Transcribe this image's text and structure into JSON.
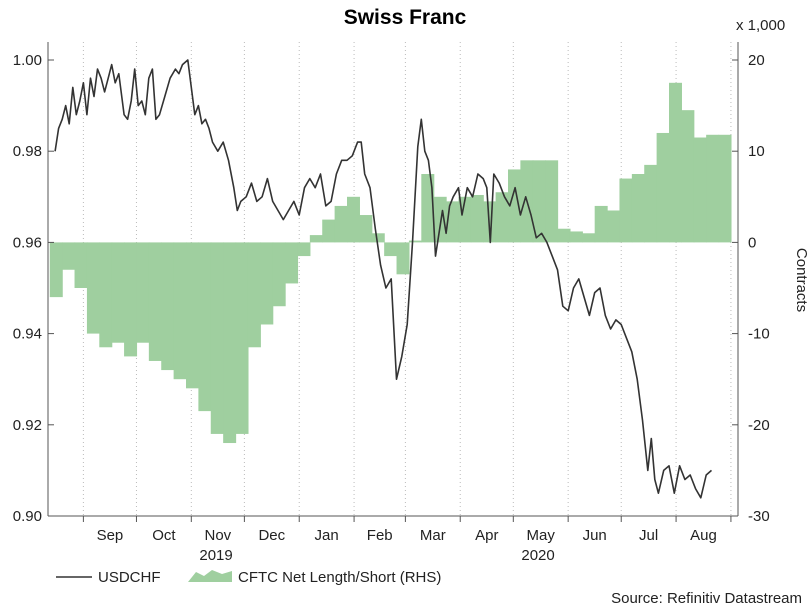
{
  "chart_data": {
    "type": "line",
    "title": "Swiss Franc",
    "source": "Source: Refinitiv Datastream",
    "x_ticks": [
      "Sep",
      "Oct",
      "Nov",
      "Dec",
      "Jan",
      "Feb",
      "Mar",
      "Apr",
      "May",
      "Jun",
      "Jul",
      "Aug"
    ],
    "year_labels": [
      {
        "label": "2019",
        "at": "2019-11-15"
      },
      {
        "label": "2020",
        "at": "2020-05-15"
      }
    ],
    "y_left": {
      "lim": [
        0.9,
        1.0
      ],
      "ticks": [
        "0.90",
        "0.92",
        "0.94",
        "0.96",
        "0.98",
        "1.00"
      ]
    },
    "y_right": {
      "lim": [
        -30,
        20
      ],
      "ticks": [
        "-30",
        "-20",
        "-10",
        "0",
        "10",
        "20"
      ],
      "label": "Contracts",
      "multiplier": "x 1,000"
    },
    "grid": {
      "vertical": true,
      "style": "dotted"
    },
    "legend_position": "bottom-left",
    "colors": {
      "line": "#333333",
      "area": "#9fcf9f",
      "axis": "#555555"
    },
    "series": [
      {
        "name": "USDCHF",
        "type": "line",
        "axis": "left",
        "points": [
          [
            "2019-08-16",
            0.98
          ],
          [
            "2019-08-18",
            0.985
          ],
          [
            "2019-08-20",
            0.987
          ],
          [
            "2019-08-22",
            0.99
          ],
          [
            "2019-08-24",
            0.986
          ],
          [
            "2019-08-26",
            0.994
          ],
          [
            "2019-08-28",
            0.988
          ],
          [
            "2019-08-30",
            0.991
          ],
          [
            "2019-09-01",
            0.995
          ],
          [
            "2019-09-03",
            0.988
          ],
          [
            "2019-09-05",
            0.996
          ],
          [
            "2019-09-07",
            0.992
          ],
          [
            "2019-09-09",
            0.998
          ],
          [
            "2019-09-11",
            0.996
          ],
          [
            "2019-09-13",
            0.993
          ],
          [
            "2019-09-15",
            0.996
          ],
          [
            "2019-09-17",
            0.999
          ],
          [
            "2019-09-19",
            0.995
          ],
          [
            "2019-09-21",
            0.997
          ],
          [
            "2019-09-24",
            0.988
          ],
          [
            "2019-09-26",
            0.987
          ],
          [
            "2019-09-28",
            0.991
          ],
          [
            "2019-09-30",
            0.998
          ],
          [
            "2019-10-02",
            0.99
          ],
          [
            "2019-10-04",
            0.991
          ],
          [
            "2019-10-06",
            0.988
          ],
          [
            "2019-10-08",
            0.996
          ],
          [
            "2019-10-10",
            0.998
          ],
          [
            "2019-10-12",
            0.987
          ],
          [
            "2019-10-14",
            0.988
          ],
          [
            "2019-10-17",
            0.992
          ],
          [
            "2019-10-20",
            0.996
          ],
          [
            "2019-10-23",
            0.998
          ],
          [
            "2019-10-25",
            0.997
          ],
          [
            "2019-10-27",
            0.999
          ],
          [
            "2019-10-30",
            1.0
          ],
          [
            "2019-11-01",
            0.994
          ],
          [
            "2019-11-03",
            0.988
          ],
          [
            "2019-11-05",
            0.99
          ],
          [
            "2019-11-07",
            0.986
          ],
          [
            "2019-11-09",
            0.987
          ],
          [
            "2019-11-11",
            0.985
          ],
          [
            "2019-11-13",
            0.982
          ],
          [
            "2019-11-16",
            0.98
          ],
          [
            "2019-11-19",
            0.982
          ],
          [
            "2019-11-22",
            0.978
          ],
          [
            "2019-11-25",
            0.972
          ],
          [
            "2019-11-27",
            0.967
          ],
          [
            "2019-11-29",
            0.969
          ],
          [
            "2019-12-02",
            0.97
          ],
          [
            "2019-12-05",
            0.973
          ],
          [
            "2019-12-08",
            0.969
          ],
          [
            "2019-12-11",
            0.97
          ],
          [
            "2019-12-14",
            0.974
          ],
          [
            "2019-12-17",
            0.969
          ],
          [
            "2019-12-20",
            0.967
          ],
          [
            "2019-12-23",
            0.965
          ],
          [
            "2019-12-26",
            0.967
          ],
          [
            "2019-12-29",
            0.969
          ],
          [
            "2020-01-01",
            0.966
          ],
          [
            "2020-01-04",
            0.972
          ],
          [
            "2020-01-07",
            0.974
          ],
          [
            "2020-01-10",
            0.972
          ],
          [
            "2020-01-13",
            0.975
          ],
          [
            "2020-01-16",
            0.968
          ],
          [
            "2020-01-19",
            0.969
          ],
          [
            "2020-01-22",
            0.975
          ],
          [
            "2020-01-25",
            0.978
          ],
          [
            "2020-01-28",
            0.978
          ],
          [
            "2020-01-31",
            0.979
          ],
          [
            "2020-02-03",
            0.982
          ],
          [
            "2020-02-05",
            0.982
          ],
          [
            "2020-02-07",
            0.975
          ],
          [
            "2020-02-10",
            0.972
          ],
          [
            "2020-02-13",
            0.963
          ],
          [
            "2020-02-16",
            0.955
          ],
          [
            "2020-02-19",
            0.95
          ],
          [
            "2020-02-22",
            0.952
          ],
          [
            "2020-02-25",
            0.93
          ],
          [
            "2020-02-28",
            0.935
          ],
          [
            "2020-03-02",
            0.942
          ],
          [
            "2020-03-05",
            0.96
          ],
          [
            "2020-03-08",
            0.981
          ],
          [
            "2020-03-10",
            0.987
          ],
          [
            "2020-03-12",
            0.98
          ],
          [
            "2020-03-14",
            0.978
          ],
          [
            "2020-03-16",
            0.972
          ],
          [
            "2020-03-18",
            0.957
          ],
          [
            "2020-03-20",
            0.962
          ],
          [
            "2020-03-22",
            0.967
          ],
          [
            "2020-03-24",
            0.962
          ],
          [
            "2020-03-26",
            0.968
          ],
          [
            "2020-03-28",
            0.97
          ],
          [
            "2020-03-31",
            0.972
          ],
          [
            "2020-04-02",
            0.966
          ],
          [
            "2020-04-05",
            0.972
          ],
          [
            "2020-04-08",
            0.97
          ],
          [
            "2020-04-11",
            0.975
          ],
          [
            "2020-04-14",
            0.974
          ],
          [
            "2020-04-16",
            0.972
          ],
          [
            "2020-04-18",
            0.96
          ],
          [
            "2020-04-20",
            0.975
          ],
          [
            "2020-04-23",
            0.973
          ],
          [
            "2020-04-26",
            0.97
          ],
          [
            "2020-04-29",
            0.968
          ],
          [
            "2020-05-02",
            0.972
          ],
          [
            "2020-05-05",
            0.966
          ],
          [
            "2020-05-08",
            0.97
          ],
          [
            "2020-05-11",
            0.966
          ],
          [
            "2020-05-14",
            0.961
          ],
          [
            "2020-05-17",
            0.962
          ],
          [
            "2020-05-20",
            0.96
          ],
          [
            "2020-05-23",
            0.957
          ],
          [
            "2020-05-26",
            0.954
          ],
          [
            "2020-05-29",
            0.946
          ],
          [
            "2020-06-01",
            0.945
          ],
          [
            "2020-06-04",
            0.95
          ],
          [
            "2020-06-07",
            0.952
          ],
          [
            "2020-06-10",
            0.948
          ],
          [
            "2020-06-13",
            0.944
          ],
          [
            "2020-06-16",
            0.949
          ],
          [
            "2020-06-19",
            0.95
          ],
          [
            "2020-06-22",
            0.944
          ],
          [
            "2020-06-25",
            0.941
          ],
          [
            "2020-06-28",
            0.943
          ],
          [
            "2020-07-01",
            0.942
          ],
          [
            "2020-07-04",
            0.939
          ],
          [
            "2020-07-07",
            0.936
          ],
          [
            "2020-07-10",
            0.93
          ],
          [
            "2020-07-13",
            0.921
          ],
          [
            "2020-07-16",
            0.91
          ],
          [
            "2020-07-18",
            0.917
          ],
          [
            "2020-07-20",
            0.908
          ],
          [
            "2020-07-22",
            0.905
          ],
          [
            "2020-07-25",
            0.91
          ],
          [
            "2020-07-28",
            0.911
          ],
          [
            "2020-07-31",
            0.905
          ],
          [
            "2020-08-03",
            0.911
          ],
          [
            "2020-08-06",
            0.908
          ],
          [
            "2020-08-09",
            0.909
          ],
          [
            "2020-08-12",
            0.906
          ],
          [
            "2020-08-15",
            0.904
          ],
          [
            "2020-08-18",
            0.909
          ],
          [
            "2020-08-21",
            0.91
          ]
        ]
      },
      {
        "name": "CFTC Net Length/Short (RHS)",
        "type": "area",
        "axis": "right",
        "steps": [
          [
            "2019-08-13",
            -6.0
          ],
          [
            "2019-08-20",
            -3.0
          ],
          [
            "2019-08-27",
            -5.0
          ],
          [
            "2019-09-03",
            -10.0
          ],
          [
            "2019-09-10",
            -11.5
          ],
          [
            "2019-09-17",
            -11.0
          ],
          [
            "2019-09-24",
            -12.5
          ],
          [
            "2019-10-01",
            -11.0
          ],
          [
            "2019-10-08",
            -13.0
          ],
          [
            "2019-10-15",
            -14.0
          ],
          [
            "2019-10-22",
            -15.0
          ],
          [
            "2019-10-29",
            -16.0
          ],
          [
            "2019-11-05",
            -18.5
          ],
          [
            "2019-11-12",
            -21.0
          ],
          [
            "2019-11-19",
            -22.0
          ],
          [
            "2019-11-26",
            -21.0
          ],
          [
            "2019-12-03",
            -11.5
          ],
          [
            "2019-12-10",
            -9.0
          ],
          [
            "2019-12-17",
            -7.0
          ],
          [
            "2019-12-24",
            -4.5
          ],
          [
            "2019-12-31",
            -1.5
          ],
          [
            "2020-01-07",
            0.8
          ],
          [
            "2020-01-14",
            2.5
          ],
          [
            "2020-01-21",
            4.0
          ],
          [
            "2020-01-28",
            5.0
          ],
          [
            "2020-02-04",
            3.0
          ],
          [
            "2020-02-11",
            1.0
          ],
          [
            "2020-02-18",
            -1.5
          ],
          [
            "2020-02-25",
            -3.5
          ],
          [
            "2020-03-03",
            0.2
          ],
          [
            "2020-03-10",
            7.5
          ],
          [
            "2020-03-17",
            5.0
          ],
          [
            "2020-03-24",
            4.5
          ],
          [
            "2020-03-31",
            5.0
          ],
          [
            "2020-04-07",
            5.2
          ],
          [
            "2020-04-14",
            4.5
          ],
          [
            "2020-04-21",
            5.5
          ],
          [
            "2020-04-28",
            8.0
          ],
          [
            "2020-05-05",
            9.0
          ],
          [
            "2020-05-12",
            9.0
          ],
          [
            "2020-05-19",
            9.0
          ],
          [
            "2020-05-26",
            1.5
          ],
          [
            "2020-06-02",
            1.2
          ],
          [
            "2020-06-09",
            1.0
          ],
          [
            "2020-06-16",
            4.0
          ],
          [
            "2020-06-23",
            3.5
          ],
          [
            "2020-06-30",
            7.0
          ],
          [
            "2020-07-07",
            7.5
          ],
          [
            "2020-07-14",
            8.5
          ],
          [
            "2020-07-21",
            12.0
          ],
          [
            "2020-07-28",
            17.5
          ],
          [
            "2020-08-04",
            14.5
          ],
          [
            "2020-08-11",
            11.5
          ],
          [
            "2020-08-18",
            11.8
          ],
          [
            "2020-08-25",
            11.8
          ]
        ]
      }
    ]
  }
}
